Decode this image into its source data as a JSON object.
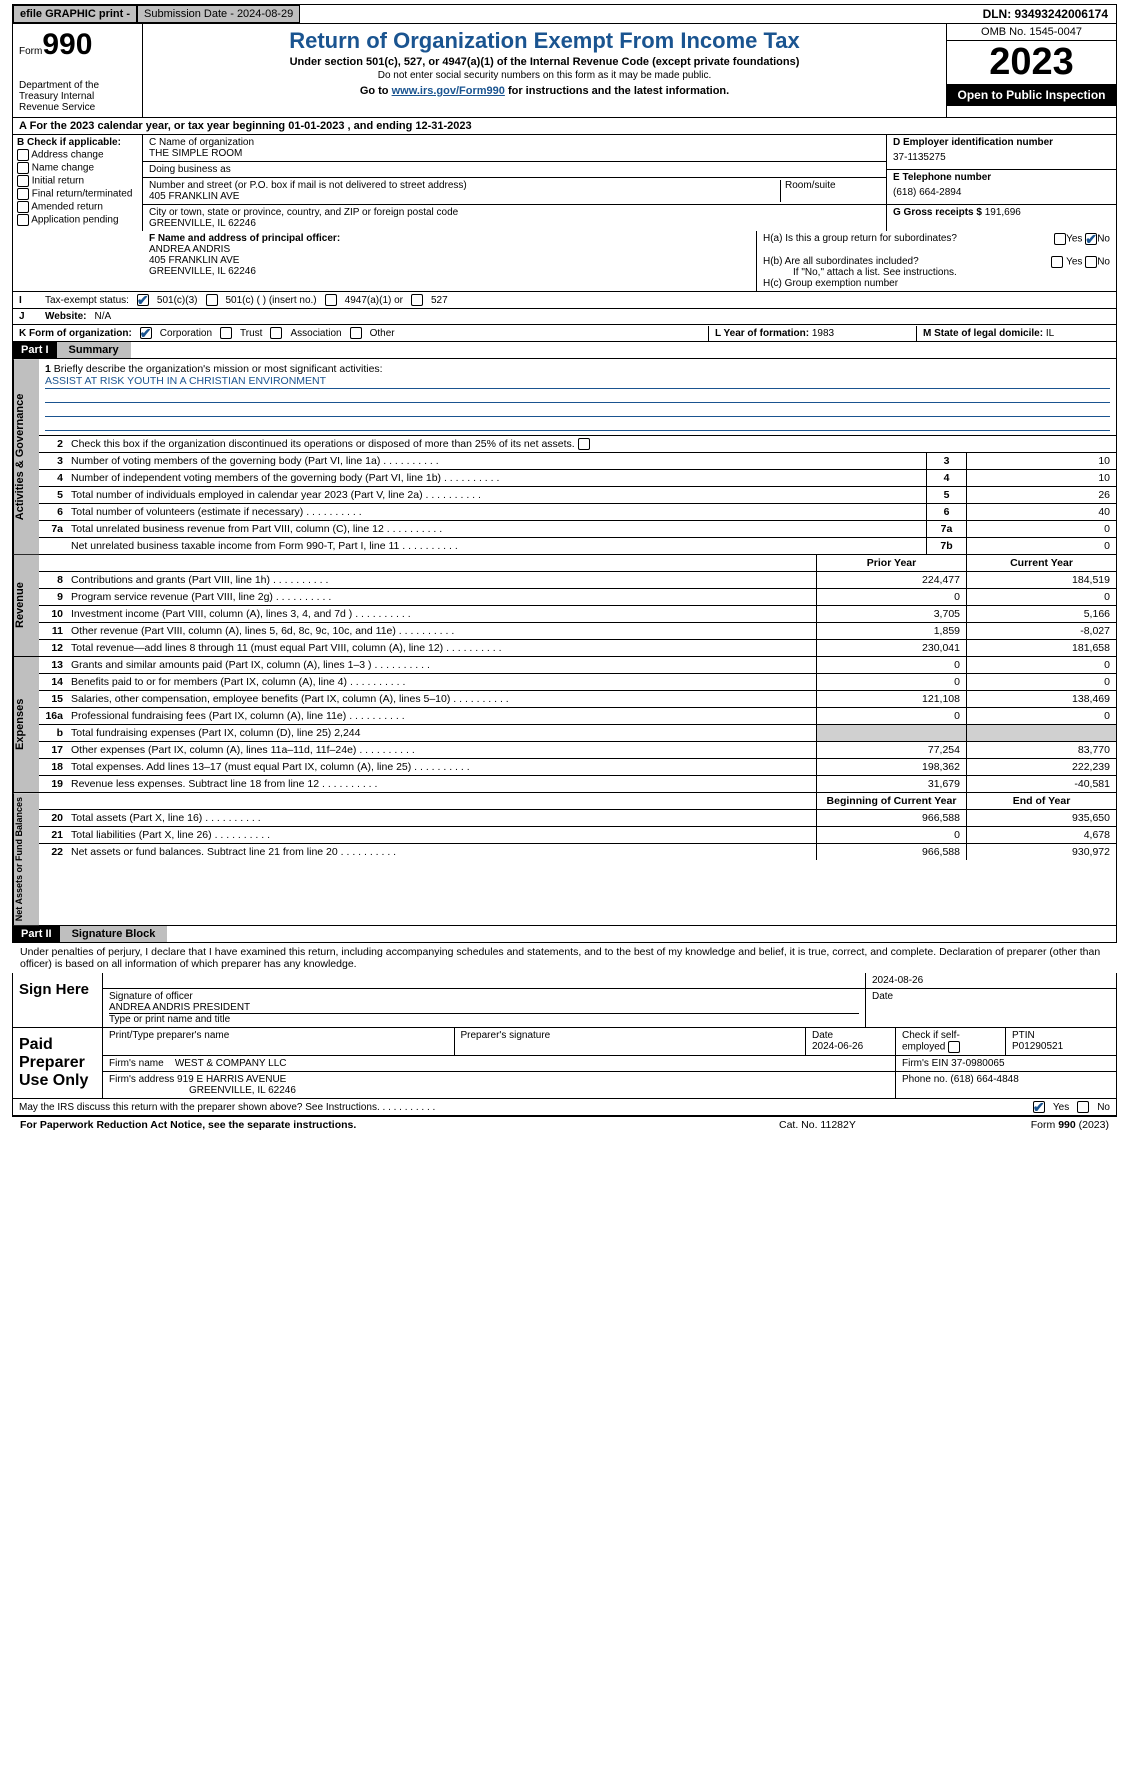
{
  "topbar": {
    "efile": "efile GRAPHIC print -",
    "submission": "Submission Date - 2024-08-29",
    "dln": "DLN: 93493242006174"
  },
  "header": {
    "form_label": "Form",
    "form_num": "990",
    "dept": "Department of the Treasury Internal Revenue Service",
    "title": "Return of Organization Exempt From Income Tax",
    "sub": "Under section 501(c), 527, or 4947(a)(1) of the Internal Revenue Code (except private foundations)",
    "note": "Do not enter social security numbers on this form as it may be made public.",
    "link_pre": "Go to ",
    "link": "www.irs.gov/Form990",
    "link_post": " for instructions and the latest information.",
    "omb": "OMB No. 1545-0047",
    "year": "2023",
    "inspect": "Open to Public Inspection"
  },
  "period": "For the 2023 calendar year, or tax year beginning 01-01-2023   , and ending 12-31-2023",
  "b": {
    "hdr": "B Check if applicable:",
    "items": [
      "Address change",
      "Name change",
      "Initial return",
      "Final return/terminated",
      "Amended return",
      "Application pending"
    ]
  },
  "c": {
    "name_lbl": "C Name of organization",
    "name": "THE SIMPLE ROOM",
    "dba_lbl": "Doing business as",
    "street_lbl": "Number and street (or P.O. box if mail is not delivered to street address)",
    "street": "405 FRANKLIN AVE",
    "room_lbl": "Room/suite",
    "city_lbl": "City or town, state or province, country, and ZIP or foreign postal code",
    "city": "GREENVILLE, IL  62246"
  },
  "d": {
    "lbl": "D Employer identification number",
    "val": "37-1135275"
  },
  "e": {
    "lbl": "E Telephone number",
    "val": "(618) 664-2894"
  },
  "g": {
    "lbl": "G Gross receipts $",
    "val": "191,696"
  },
  "f": {
    "lbl": "F  Name and address of principal officer:",
    "name": "ANDREA ANDRIS",
    "street": "405 FRANKLIN AVE",
    "city": "GREENVILLE, IL  62246"
  },
  "h": {
    "a": "H(a)  Is this a group return for subordinates?",
    "b": "H(b)  Are all subordinates included?",
    "b_note": "If \"No,\" attach a list. See instructions.",
    "c": "H(c)  Group exemption number",
    "yes": "Yes",
    "no": "No"
  },
  "i": {
    "lbl": "Tax-exempt status:",
    "c3": "501(c)(3)",
    "c": "501(c) (  ) (insert no.)",
    "a1": "4947(a)(1) or",
    "s527": "527"
  },
  "j": {
    "lbl": "Website:",
    "val": "N/A"
  },
  "k": {
    "lbl": "K Form of organization:",
    "corp": "Corporation",
    "trust": "Trust",
    "assoc": "Association",
    "other": "Other"
  },
  "l": {
    "lbl": "L Year of formation:",
    "val": "1983"
  },
  "m": {
    "lbl": "M State of legal domicile:",
    "val": "IL"
  },
  "part1": {
    "hdr": "Part I",
    "label": "Summary"
  },
  "mission": {
    "q": "Briefly describe the organization's mission or most significant activities:",
    "a": "ASSIST AT RISK YOUTH IN A CHRISTIAN ENVIRONMENT"
  },
  "line2": "Check this box      if the organization discontinued its operations or disposed of more than 25% of its net assets.",
  "gov": [
    {
      "n": "3",
      "t": "Number of voting members of the governing body (Part VI, line 1a)",
      "b": "3",
      "v": "10"
    },
    {
      "n": "4",
      "t": "Number of independent voting members of the governing body (Part VI, line 1b)",
      "b": "4",
      "v": "10"
    },
    {
      "n": "5",
      "t": "Total number of individuals employed in calendar year 2023 (Part V, line 2a)",
      "b": "5",
      "v": "26"
    },
    {
      "n": "6",
      "t": "Total number of volunteers (estimate if necessary)",
      "b": "6",
      "v": "40"
    },
    {
      "n": "7a",
      "t": "Total unrelated business revenue from Part VIII, column (C), line 12",
      "b": "7a",
      "v": "0"
    },
    {
      "n": "",
      "t": "Net unrelated business taxable income from Form 990-T, Part I, line 11",
      "b": "7b",
      "v": "0"
    }
  ],
  "rev_hdr": {
    "prior": "Prior Year",
    "curr": "Current Year"
  },
  "rev": [
    {
      "n": "8",
      "t": "Contributions and grants (Part VIII, line 1h)",
      "p": "224,477",
      "c": "184,519"
    },
    {
      "n": "9",
      "t": "Program service revenue (Part VIII, line 2g)",
      "p": "0",
      "c": "0"
    },
    {
      "n": "10",
      "t": "Investment income (Part VIII, column (A), lines 3, 4, and 7d )",
      "p": "3,705",
      "c": "5,166"
    },
    {
      "n": "11",
      "t": "Other revenue (Part VIII, column (A), lines 5, 6d, 8c, 9c, 10c, and 11e)",
      "p": "1,859",
      "c": "-8,027"
    },
    {
      "n": "12",
      "t": "Total revenue—add lines 8 through 11 (must equal Part VIII, column (A), line 12)",
      "p": "230,041",
      "c": "181,658"
    }
  ],
  "exp": [
    {
      "n": "13",
      "t": "Grants and similar amounts paid (Part IX, column (A), lines 1–3 )",
      "p": "0",
      "c": "0"
    },
    {
      "n": "14",
      "t": "Benefits paid to or for members (Part IX, column (A), line 4)",
      "p": "0",
      "c": "0"
    },
    {
      "n": "15",
      "t": "Salaries, other compensation, employee benefits (Part IX, column (A), lines 5–10)",
      "p": "121,108",
      "c": "138,469"
    },
    {
      "n": "16a",
      "t": "Professional fundraising fees (Part IX, column (A), line 11e)",
      "p": "0",
      "c": "0"
    },
    {
      "n": "b",
      "t": "Total fundraising expenses (Part IX, column (D), line 25) 2,244",
      "p": "",
      "c": "",
      "shade": true
    },
    {
      "n": "17",
      "t": "Other expenses (Part IX, column (A), lines 11a–11d, 11f–24e)",
      "p": "77,254",
      "c": "83,770"
    },
    {
      "n": "18",
      "t": "Total expenses. Add lines 13–17 (must equal Part IX, column (A), line 25)",
      "p": "198,362",
      "c": "222,239"
    },
    {
      "n": "19",
      "t": "Revenue less expenses. Subtract line 18 from line 12",
      "p": "31,679",
      "c": "-40,581"
    }
  ],
  "na_hdr": {
    "beg": "Beginning of Current Year",
    "end": "End of Year"
  },
  "na": [
    {
      "n": "20",
      "t": "Total assets (Part X, line 16)",
      "p": "966,588",
      "c": "935,650"
    },
    {
      "n": "21",
      "t": "Total liabilities (Part X, line 26)",
      "p": "0",
      "c": "4,678"
    },
    {
      "n": "22",
      "t": "Net assets or fund balances. Subtract line 21 from line 20",
      "p": "966,588",
      "c": "930,972"
    }
  ],
  "part2": {
    "hdr": "Part II",
    "label": "Signature Block"
  },
  "sig_decl": "Under penalties of perjury, I declare that I have examined this return, including accompanying schedules and statements, and to the best of my knowledge and belief, it is true, correct, and complete. Declaration of preparer (other than officer) is based on all information of which preparer has any knowledge.",
  "sign": {
    "here": "Sign Here",
    "date": "2024-08-26",
    "sig_lbl": "Signature of officer",
    "name": "ANDREA ANDRIS PRESIDENT",
    "type_lbl": "Type or print name and title",
    "date_lbl": "Date"
  },
  "paid": {
    "here": "Paid Preparer Use Only",
    "print_lbl": "Print/Type preparer's name",
    "sig_lbl": "Preparer's signature",
    "date_lbl": "Date",
    "date": "2024-06-26",
    "check_lbl": "Check        if self-employed",
    "ptin_lbl": "PTIN",
    "ptin": "P01290521",
    "firm_lbl": "Firm's name",
    "firm": "WEST & COMPANY LLC",
    "ein_lbl": "Firm's EIN",
    "ein": "37-0980065",
    "addr_lbl": "Firm's address",
    "addr1": "919 E HARRIS AVENUE",
    "addr2": "GREENVILLE, IL  62246",
    "phone_lbl": "Phone no.",
    "phone": "(618) 664-4848"
  },
  "discuss": "May the IRS discuss this return with the preparer shown above? See Instructions.",
  "footer": {
    "l": "For Paperwork Reduction Act Notice, see the separate instructions.",
    "m": "Cat. No. 11282Y",
    "r_pre": "Form ",
    "r_b": "990",
    "r_post": " (2023)"
  },
  "vtabs": {
    "gov": "Activities & Governance",
    "rev": "Revenue",
    "exp": "Expenses",
    "na": "Net Assets or Fund Balances"
  }
}
